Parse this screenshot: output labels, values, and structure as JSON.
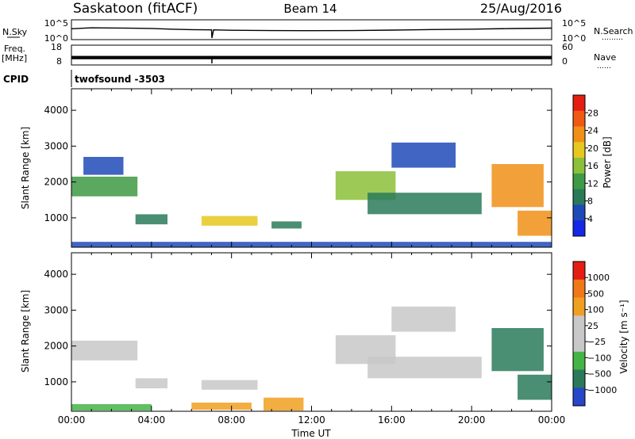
{
  "header": {
    "station": "Saskatoon (fitACF)",
    "beam": "Beam 14",
    "date": "25/Aug/2016"
  },
  "strip_labels": {
    "nsky": "N.Sky",
    "nsearch": "N.Search",
    "freq": "Freq.",
    "freq_unit": "[MHz]",
    "nave": "Nave",
    "cpid": "CPID",
    "cpid_value": "twofsound -3503",
    "dots_a": "………",
    "dots_b": "……"
  },
  "colors": {
    "power": [
      "#1428e6",
      "#1e4ab8",
      "#2a7a5a",
      "#3e9a44",
      "#8cc03a",
      "#e6c81e",
      "#f09018",
      "#ee5a14",
      "#e41e12"
    ],
    "velocity": [
      "#2846c8",
      "#2a7a5a",
      "#44b446",
      "#c8c8c8",
      "#c8c8c8",
      "#f0a020",
      "#f07818",
      "#e41e12"
    ],
    "grey_fit": "#c8c8c8"
  },
  "chart_data": [
    {
      "type": "line",
      "title": "",
      "ylabel_left": "N.Sky",
      "ylabel_right": "N.Search",
      "yticks_left": [
        "10^5",
        "10^0"
      ],
      "yticks_right": [
        "10^5",
        "10^0"
      ],
      "log_scale": true,
      "xlim": [
        0,
        24
      ],
      "series": [
        {
          "x": [
            0,
            1,
            2,
            3,
            4,
            5,
            6,
            7,
            7.02,
            7.1,
            8,
            10,
            12,
            14,
            16,
            18,
            20,
            22,
            24
          ],
          "y": [
            1200,
            2500,
            2200,
            1800,
            1500,
            900,
            600,
            500,
            1,
            500,
            380,
            300,
            280,
            300,
            420,
            650,
            900,
            1400,
            2000
          ]
        }
      ]
    },
    {
      "type": "line",
      "title": "",
      "ylabel_left": "Freq. [MHz]",
      "ylabel_right": "Nave",
      "yticks_left": [
        "18",
        "8"
      ],
      "yticks_right": [
        "60",
        "0"
      ],
      "xlim": [
        0,
        24
      ],
      "series": [
        {
          "x": [
            0,
            7,
            7.02,
            7.1,
            24
          ],
          "y": [
            11.5,
            11.5,
            8,
            11.5,
            11.5
          ]
        }
      ]
    },
    {
      "type": "heatmap",
      "title": "",
      "xlabel": "",
      "ylabel": "Slant Range [km]",
      "colorbar_label": "Power [dB]",
      "colorbar_ticks": [
        "28",
        "24",
        "20",
        "16",
        "12",
        "8",
        "4"
      ],
      "xlim": [
        0,
        24
      ],
      "ylim": [
        180,
        4600
      ],
      "yticks": [
        1000,
        2000,
        3000,
        4000
      ],
      "xticks": [
        0,
        4,
        8,
        12,
        16,
        20,
        24
      ],
      "regions": [
        {
          "t0": 0.0,
          "t1": 3.3,
          "r0": 1600,
          "r1": 2150,
          "level": 3
        },
        {
          "t0": 0.6,
          "t1": 2.6,
          "r0": 2200,
          "r1": 2700,
          "level": 1
        },
        {
          "t0": 3.2,
          "t1": 4.8,
          "r0": 820,
          "r1": 1100,
          "level": 2
        },
        {
          "t0": 6.5,
          "t1": 9.3,
          "r0": 780,
          "r1": 1050,
          "level": 5
        },
        {
          "t0": 10.0,
          "t1": 11.5,
          "r0": 700,
          "r1": 900,
          "level": 2
        },
        {
          "t0": 13.2,
          "t1": 16.2,
          "r0": 1500,
          "r1": 2300,
          "level": 4
        },
        {
          "t0": 14.8,
          "t1": 20.5,
          "r0": 1100,
          "r1": 1700,
          "level": 2
        },
        {
          "t0": 16.0,
          "t1": 19.2,
          "r0": 2400,
          "r1": 3100,
          "level": 1
        },
        {
          "t0": 21.0,
          "t1": 23.6,
          "r0": 1300,
          "r1": 2500,
          "level": 6
        },
        {
          "t0": 22.3,
          "t1": 24.0,
          "r0": 500,
          "r1": 1200,
          "level": 6
        },
        {
          "t0": 0.0,
          "t1": 24.0,
          "r0": 180,
          "r1": 330,
          "level": 1
        }
      ]
    },
    {
      "type": "heatmap",
      "title": "",
      "xlabel": "Time UT",
      "ylabel": "Slant Range [km]",
      "colorbar_label": "Velocity [m s⁻¹]",
      "colorbar_ticks": [
        "1000",
        "500",
        "100",
        "25",
        "−25",
        "−100",
        "−500",
        "−1000"
      ],
      "xlim": [
        0,
        24
      ],
      "ylim": [
        180,
        4600
      ],
      "yticks": [
        1000,
        2000,
        3000,
        4000
      ],
      "xticks": [
        "00:00",
        "04:00",
        "08:00",
        "12:00",
        "16:00",
        "20:00",
        "00:00"
      ],
      "regions": [
        {
          "t0": 0.0,
          "t1": 3.3,
          "r0": 1600,
          "r1": 2150,
          "level": 3
        },
        {
          "t0": 3.2,
          "t1": 4.8,
          "r0": 820,
          "r1": 1100,
          "level": 3
        },
        {
          "t0": 6.5,
          "t1": 9.3,
          "r0": 780,
          "r1": 1050,
          "level": 3
        },
        {
          "t0": 13.2,
          "t1": 16.2,
          "r0": 1500,
          "r1": 2300,
          "level": 3
        },
        {
          "t0": 14.8,
          "t1": 20.5,
          "r0": 1100,
          "r1": 1700,
          "level": 3
        },
        {
          "t0": 16.0,
          "t1": 19.2,
          "r0": 2400,
          "r1": 3100,
          "level": 3
        },
        {
          "t0": 21.0,
          "t1": 23.6,
          "r0": 1300,
          "r1": 2500,
          "level": 1
        },
        {
          "t0": 22.3,
          "t1": 24.0,
          "r0": 500,
          "r1": 1200,
          "level": 1
        },
        {
          "t0": 9.6,
          "t1": 11.6,
          "r0": 200,
          "r1": 560,
          "level": 5
        },
        {
          "t0": 6.0,
          "t1": 9.0,
          "r0": 220,
          "r1": 420,
          "level": 5
        },
        {
          "t0": 0.0,
          "t1": 4.0,
          "r0": 200,
          "r1": 380,
          "level": 2
        }
      ]
    }
  ]
}
